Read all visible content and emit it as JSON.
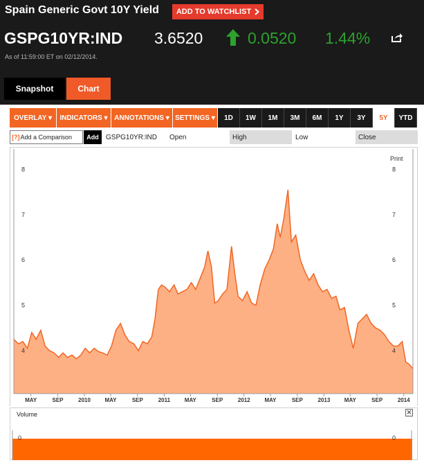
{
  "header": {
    "security_name": "Spain Generic Govt 10Y Yield",
    "watchlist_label": "ADD TO WATCHLIST",
    "ticker": "GSPG10YR:IND",
    "price": "3.6520",
    "change": "0.0520",
    "change_pct": "1.44%",
    "as_of": "As of 11:59:00 ET on 02/12/2014.",
    "up_color": "#2ea12e",
    "accent_color": "#f26522"
  },
  "tabs": [
    {
      "label": "Snapshot"
    },
    {
      "label": "Chart"
    }
  ],
  "toolbar": {
    "menus": [
      {
        "label": "OVERLAY ▾"
      },
      {
        "label": "INDICATORS ▾"
      },
      {
        "label": "ANNOTATIONS ▾"
      },
      {
        "label": "SETTINGS ▾"
      }
    ],
    "ranges": [
      "1D",
      "1W",
      "1M",
      "3M",
      "6M",
      "1Y",
      "3Y",
      "5Y",
      "YTD"
    ],
    "active_range": "5Y"
  },
  "comparison": {
    "prompt_marker": "[?]",
    "prompt": "Add a Comparison",
    "add_label": "Add",
    "symbol": "GSPG10YR:IND",
    "open_label": "Open",
    "high_label": "High",
    "low_label": "Low",
    "close_label": "Close"
  },
  "print_label": "Print",
  "volume": {
    "title": "Volume",
    "close_glyph": "✕",
    "left_tick": "0",
    "right_tick": "0",
    "bar_color": "#ff6600"
  },
  "chart_data": {
    "type": "area",
    "ylim": [
      3.05,
      8.45
    ],
    "y_ticks": [
      4,
      5,
      6,
      7,
      8
    ],
    "xlim": [
      "2009-02-12",
      "2014-02-12"
    ],
    "x_ticks": [
      {
        "label": "MAY",
        "date": "2009-05-01"
      },
      {
        "label": "SEP",
        "date": "2009-09-01"
      },
      {
        "label": "2010",
        "date": "2010-01-01"
      },
      {
        "label": "MAY",
        "date": "2010-05-01"
      },
      {
        "label": "SEP",
        "date": "2010-09-01"
      },
      {
        "label": "2011",
        "date": "2011-01-01"
      },
      {
        "label": "MAY",
        "date": "2011-05-01"
      },
      {
        "label": "SEP",
        "date": "2011-09-01"
      },
      {
        "label": "2012",
        "date": "2012-01-01"
      },
      {
        "label": "MAY",
        "date": "2012-05-01"
      },
      {
        "label": "SEP",
        "date": "2012-09-01"
      },
      {
        "label": "2013",
        "date": "2013-01-01"
      },
      {
        "label": "MAY",
        "date": "2013-05-01"
      },
      {
        "label": "SEP",
        "date": "2013-09-01"
      },
      {
        "label": "2014",
        "date": "2014-01-01"
      }
    ],
    "grid": false,
    "fill_color": "#fdb084",
    "line_color": "#f26522",
    "series": [
      {
        "x": [
          "2009-02-12",
          "2009-03-05",
          "2009-03-25",
          "2009-04-15",
          "2009-05-05",
          "2009-05-25",
          "2009-06-15",
          "2009-07-05",
          "2009-07-25",
          "2009-08-15",
          "2009-09-05",
          "2009-09-25",
          "2009-10-15",
          "2009-11-05",
          "2009-11-25",
          "2009-12-15",
          "2010-01-05",
          "2010-01-25",
          "2010-02-15",
          "2010-03-05",
          "2010-03-25",
          "2010-04-15",
          "2010-05-05",
          "2010-05-25",
          "2010-06-15",
          "2010-07-05",
          "2010-07-25",
          "2010-08-15",
          "2010-09-05",
          "2010-09-25",
          "2010-10-15",
          "2010-11-05",
          "2010-11-20",
          "2010-12-05",
          "2010-12-20",
          "2011-01-05",
          "2011-01-25",
          "2011-02-15",
          "2011-03-05",
          "2011-03-25",
          "2011-04-15",
          "2011-05-05",
          "2011-05-25",
          "2011-06-15",
          "2011-07-05",
          "2011-07-20",
          "2011-08-05",
          "2011-08-20",
          "2011-09-05",
          "2011-09-25",
          "2011-10-15",
          "2011-11-05",
          "2011-11-20",
          "2011-12-05",
          "2011-12-25",
          "2012-01-15",
          "2012-02-05",
          "2012-02-25",
          "2012-03-15",
          "2012-04-05",
          "2012-04-25",
          "2012-05-15",
          "2012-06-01",
          "2012-06-15",
          "2012-07-01",
          "2012-07-20",
          "2012-08-05",
          "2012-08-25",
          "2012-09-15",
          "2012-10-05",
          "2012-10-25",
          "2012-11-15",
          "2012-12-05",
          "2012-12-25",
          "2013-01-15",
          "2013-02-05",
          "2013-02-25",
          "2013-03-15",
          "2013-04-05",
          "2013-04-25",
          "2013-05-15",
          "2013-06-05",
          "2013-06-25",
          "2013-07-15",
          "2013-08-05",
          "2013-08-25",
          "2013-09-15",
          "2013-10-05",
          "2013-10-25",
          "2013-11-15",
          "2013-12-05",
          "2013-12-25",
          "2014-01-10",
          "2014-01-25",
          "2014-02-12"
        ],
        "y": [
          4.25,
          4.15,
          4.2,
          4.05,
          4.4,
          4.25,
          4.45,
          4.1,
          4.0,
          3.95,
          3.85,
          3.95,
          3.85,
          3.9,
          3.82,
          3.9,
          4.05,
          3.95,
          4.05,
          3.98,
          3.95,
          3.9,
          4.1,
          4.45,
          4.6,
          4.35,
          4.2,
          4.15,
          4.0,
          4.2,
          4.15,
          4.3,
          4.7,
          5.35,
          5.45,
          5.4,
          5.3,
          5.45,
          5.25,
          5.3,
          5.35,
          5.5,
          5.35,
          5.6,
          5.85,
          6.2,
          5.85,
          5.05,
          5.1,
          5.25,
          5.35,
          6.3,
          5.7,
          5.2,
          5.1,
          5.3,
          5.05,
          5.0,
          5.45,
          5.8,
          6.0,
          6.25,
          6.8,
          6.5,
          6.9,
          7.55,
          6.4,
          6.55,
          6.0,
          5.75,
          5.55,
          5.7,
          5.45,
          5.3,
          5.35,
          5.15,
          5.2,
          4.9,
          4.95,
          4.45,
          4.05,
          4.6,
          4.7,
          4.8,
          4.6,
          4.5,
          4.45,
          4.35,
          4.2,
          4.1,
          4.1,
          4.2,
          3.75,
          3.7,
          3.6
        ]
      }
    ]
  }
}
